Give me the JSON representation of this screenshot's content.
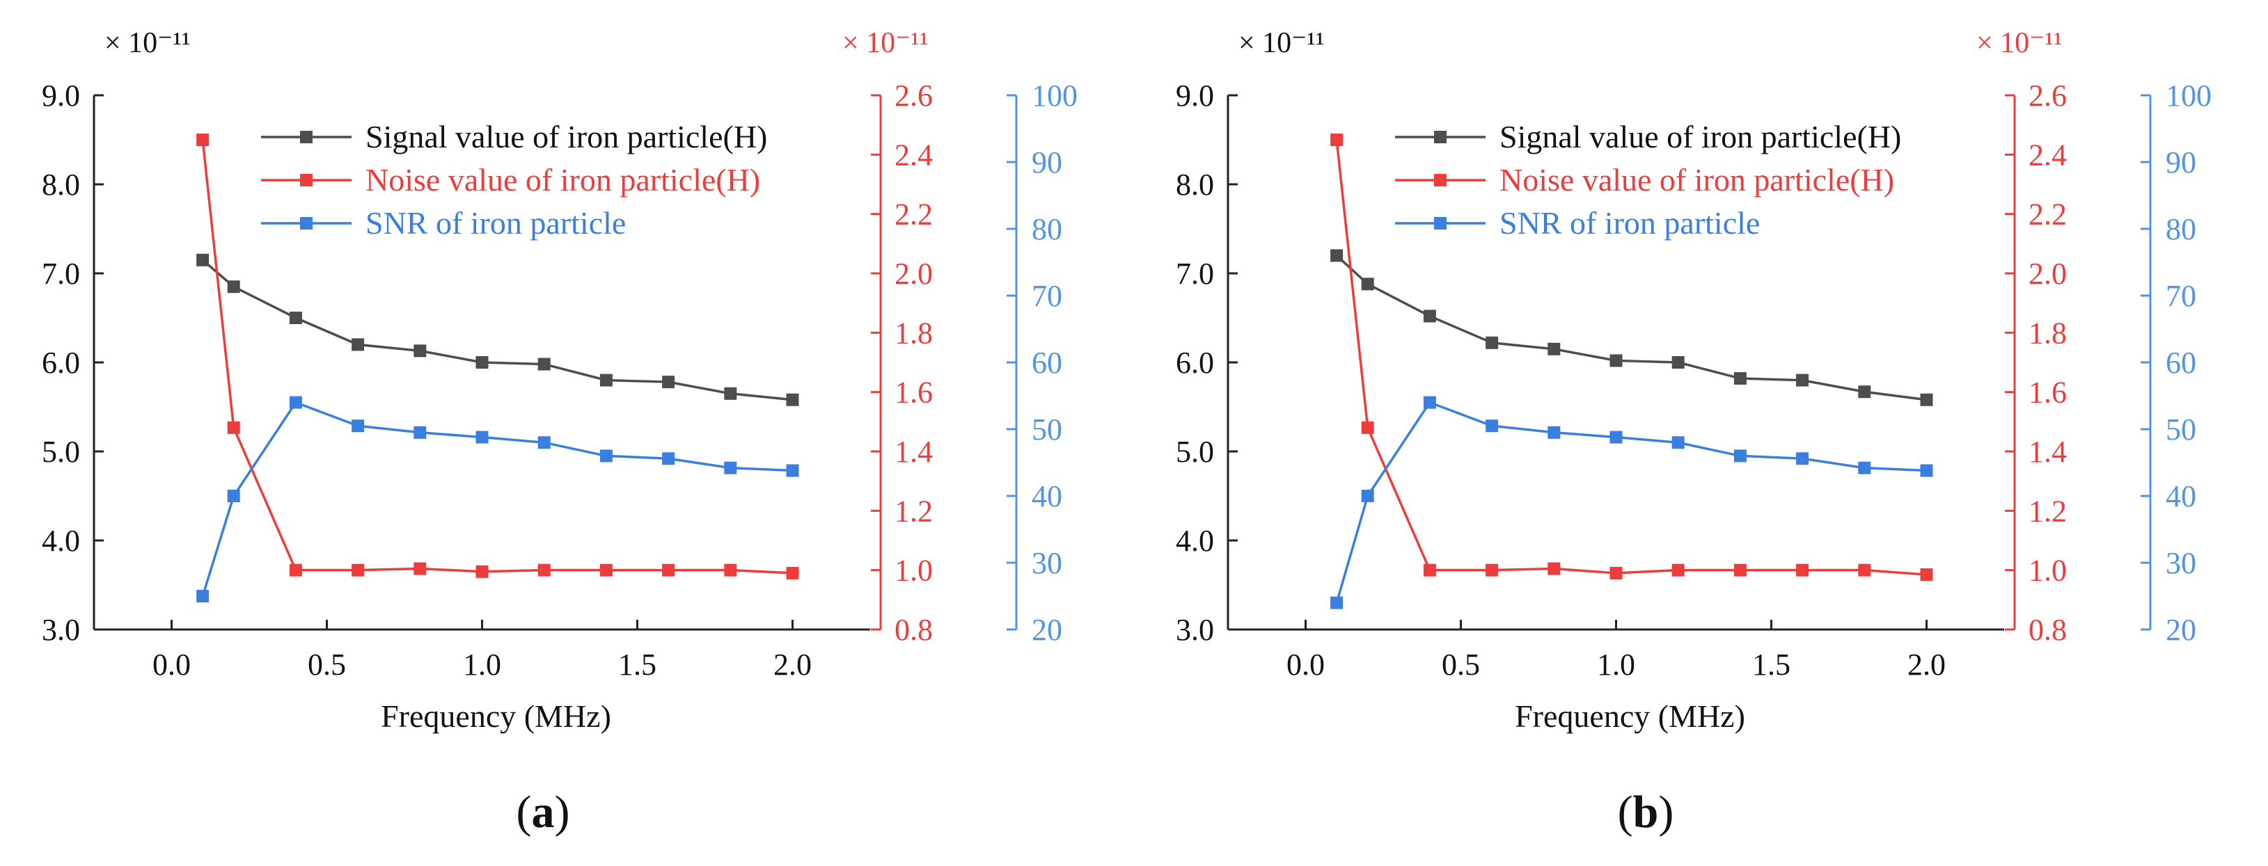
{
  "chart_data": [
    {
      "type": "line",
      "panel_label": "a",
      "xlabel": "Frequency (MHz)",
      "xlim": [
        -0.25,
        2.25
      ],
      "x_ticks": [
        "0.0",
        "0.5",
        "1.0",
        "1.5",
        "2.0"
      ],
      "x_tick_values": [
        0.0,
        0.5,
        1.0,
        1.5,
        2.0
      ],
      "axes": {
        "left": {
          "multiplier": "× 10⁻¹¹",
          "ylim": [
            3.0,
            9.0
          ],
          "ticks": [
            "3.0",
            "4.0",
            "5.0",
            "6.0",
            "7.0",
            "8.0",
            "9.0"
          ],
          "color": "#111111"
        },
        "right1": {
          "multiplier": "× 10⁻¹¹",
          "ylim": [
            0.8,
            2.6
          ],
          "ticks": [
            "0.8",
            "1.0",
            "1.2",
            "1.4",
            "1.6",
            "1.8",
            "2.0",
            "2.2",
            "2.4",
            "2.6"
          ],
          "color": "#ee3b3b"
        },
        "right2": {
          "ylim": [
            20,
            100
          ],
          "ticks": [
            "20",
            "30",
            "40",
            "50",
            "60",
            "70",
            "80",
            "90",
            "100"
          ],
          "color": "#4f94e8"
        }
      },
      "x": [
        0.1,
        0.2,
        0.4,
        0.6,
        0.8,
        1.0,
        1.2,
        1.4,
        1.6,
        1.8,
        2.0
      ],
      "series": [
        {
          "name": "Signal value of iron particle(H)",
          "axis": "left",
          "color": "#4d4d4d",
          "values": [
            7.15,
            6.85,
            6.5,
            6.2,
            6.13,
            6.0,
            5.98,
            5.8,
            5.78,
            5.65,
            5.58
          ]
        },
        {
          "name": "Noise value of iron particle(H)",
          "axis": "right1",
          "color": "#ee3b3b",
          "values": [
            2.45,
            1.48,
            1.0,
            1.0,
            1.005,
            0.995,
            1.0,
            1.0,
            1.0,
            1.0,
            0.99
          ]
        },
        {
          "name": "SNR of iron particle",
          "axis": "right2",
          "color": "#3a7fe0",
          "values": [
            25,
            40,
            54,
            50.5,
            49.5,
            48.8,
            48,
            46,
            45.6,
            44.2,
            43.8
          ]
        }
      ],
      "legend_position": "top"
    },
    {
      "type": "line",
      "panel_label": "b",
      "xlabel": "Frequency (MHz)",
      "xlim": [
        -0.25,
        2.25
      ],
      "x_ticks": [
        "0.0",
        "0.5",
        "1.0",
        "1.5",
        "2.0"
      ],
      "x_tick_values": [
        0.0,
        0.5,
        1.0,
        1.5,
        2.0
      ],
      "axes": {
        "left": {
          "multiplier": "× 10⁻¹¹",
          "ylim": [
            3.0,
            9.0
          ],
          "ticks": [
            "3.0",
            "4.0",
            "5.0",
            "6.0",
            "7.0",
            "8.0",
            "9.0"
          ],
          "color": "#111111"
        },
        "right1": {
          "multiplier": "× 10⁻¹¹",
          "ylim": [
            0.8,
            2.6
          ],
          "ticks": [
            "0.8",
            "1.0",
            "1.2",
            "1.4",
            "1.6",
            "1.8",
            "2.0",
            "2.2",
            "2.4",
            "2.6"
          ],
          "color": "#ee3b3b"
        },
        "right2": {
          "ylim": [
            20,
            100
          ],
          "ticks": [
            "20",
            "30",
            "40",
            "50",
            "60",
            "70",
            "80",
            "90",
            "100"
          ],
          "color": "#4f94e8"
        }
      },
      "x": [
        0.1,
        0.2,
        0.4,
        0.6,
        0.8,
        1.0,
        1.2,
        1.4,
        1.6,
        1.8,
        2.0
      ],
      "series": [
        {
          "name": "Signal value of iron particle(H)",
          "axis": "left",
          "color": "#4d4d4d",
          "values": [
            7.2,
            6.88,
            6.52,
            6.22,
            6.15,
            6.02,
            6.0,
            5.82,
            5.8,
            5.67,
            5.58
          ]
        },
        {
          "name": "Noise value of iron particle(H)",
          "axis": "right1",
          "color": "#ee3b3b",
          "values": [
            2.45,
            1.48,
            1.0,
            1.0,
            1.005,
            0.99,
            1.0,
            1.0,
            1.0,
            1.0,
            0.985
          ]
        },
        {
          "name": "SNR of iron particle",
          "axis": "right2",
          "color": "#3a7fe0",
          "values": [
            24,
            40,
            54,
            50.5,
            49.5,
            48.8,
            48,
            46,
            45.6,
            44.2,
            43.8
          ]
        }
      ],
      "legend_position": "top"
    }
  ],
  "captions": [
    {
      "open": "(",
      "letter": "a",
      "close": ")"
    },
    {
      "open": "(",
      "letter": "b",
      "close": ")"
    }
  ]
}
